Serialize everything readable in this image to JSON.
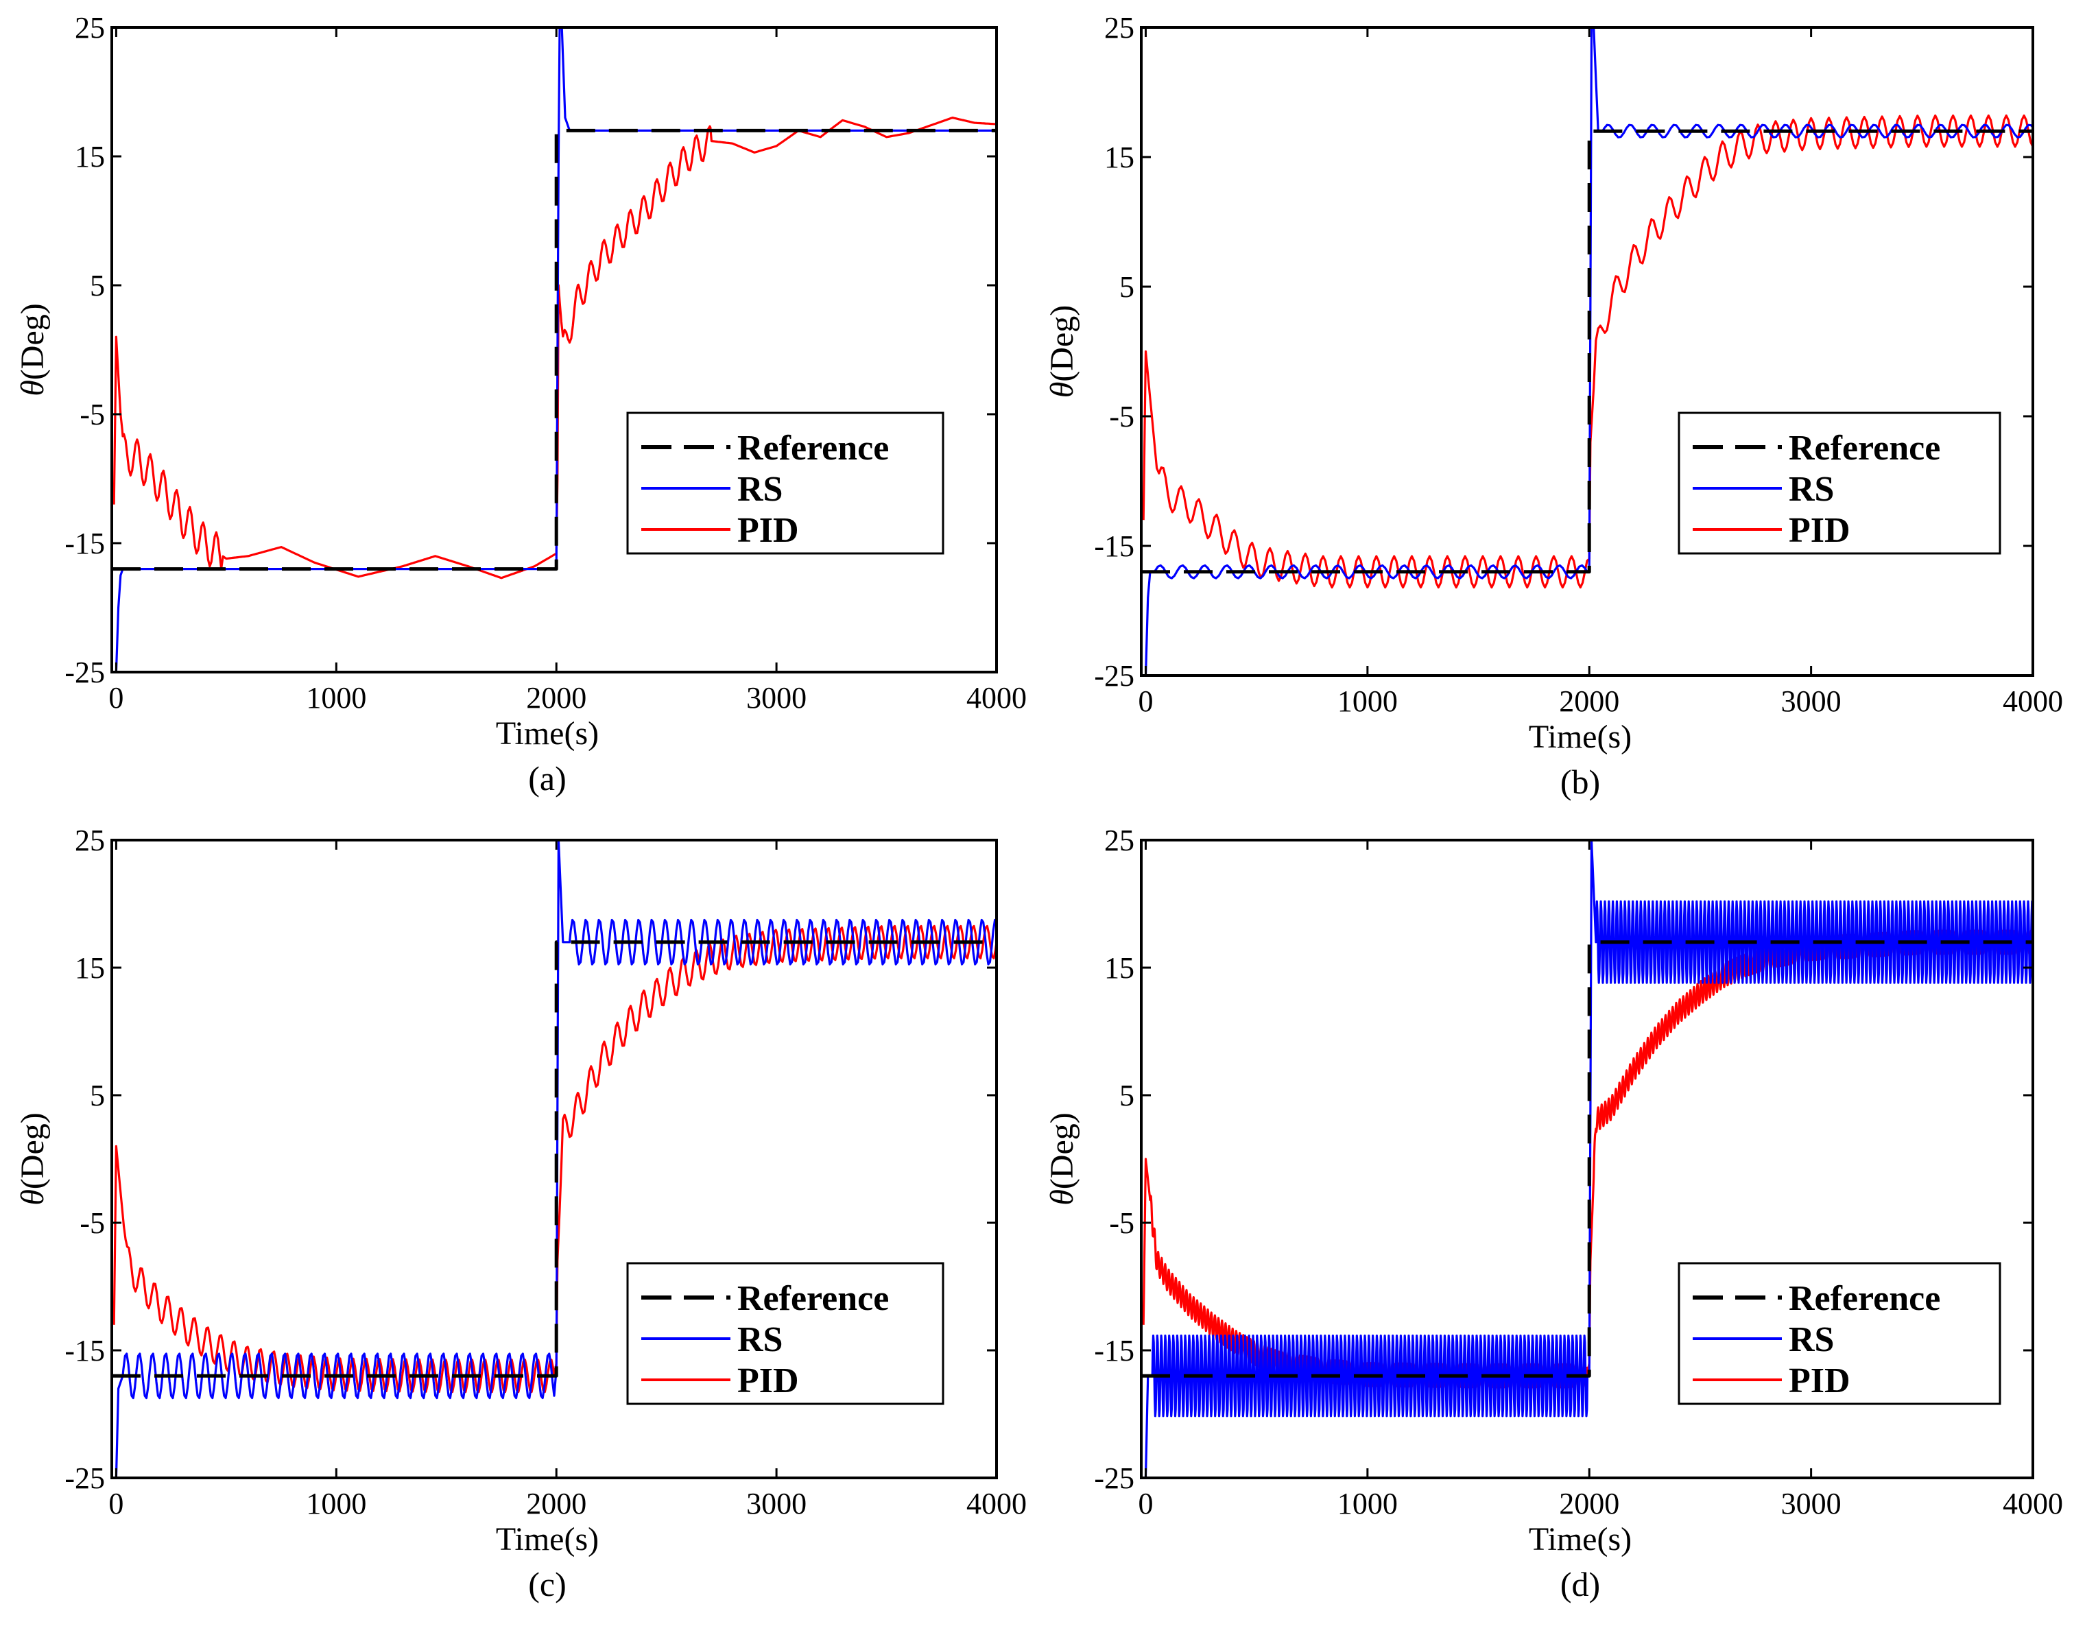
{
  "colors": {
    "reference": "#000000",
    "rs": "#0000ff",
    "pid": "#ff0000",
    "axes": "#000000",
    "background": "#ffffff"
  },
  "chart_data": [
    {
      "type": "line",
      "caption": "(a)",
      "xlabel": "Time(s)",
      "ylabel_symbol": "θ",
      "ylabel_unit": "(Deg)",
      "xlim": [
        -20,
        4000
      ],
      "ylim": [
        -25,
        25
      ],
      "xticks": [
        0,
        1000,
        2000,
        3000,
        4000
      ],
      "yticks": [
        25,
        15,
        5,
        -5,
        -15,
        -25
      ],
      "legend_position": "lower-right",
      "series": [
        {
          "name": "Reference",
          "style": "dashed",
          "color": "#000000",
          "x": [
            -20,
            2000,
            2000,
            4000
          ],
          "y": [
            -17,
            -17,
            17,
            17
          ]
        },
        {
          "name": "RS",
          "style": "solid",
          "color": "#0000ff",
          "x": [
            -20,
            0,
            10,
            20,
            30,
            60,
            100,
            200,
            2000,
            2010,
            2015,
            2025,
            2040,
            2060,
            2100,
            4000
          ],
          "y": [
            -25,
            -25,
            -20,
            -17.5,
            -17,
            -17,
            -17,
            -17,
            -17,
            15,
            25,
            25,
            18,
            17,
            17,
            17
          ]
        },
        {
          "name": "PID",
          "style": "solid",
          "color": "#ff0000",
          "x": [
            -10,
            0,
            30,
            100,
            200,
            300,
            400,
            500,
            600,
            750,
            900,
            1100,
            1300,
            1450,
            1600,
            1750,
            1900,
            2000,
            2005,
            2010,
            2030,
            2050,
            2100,
            2200,
            2300,
            2400,
            2500,
            2600,
            2700,
            2800,
            2900,
            3000,
            3100,
            3200,
            3300,
            3400,
            3500,
            3600,
            3700,
            3800,
            3900,
            4000
          ],
          "y": [
            -12,
            1,
            -8,
            -8.5,
            -10.5,
            -13,
            -15,
            -16.2,
            -16,
            -15.3,
            -16.5,
            -17.6,
            -16.8,
            -16,
            -16.8,
            -17.7,
            -16.8,
            -15.8,
            -10,
            5,
            0,
            1,
            4,
            7,
            9,
            10.8,
            13,
            15,
            16.2,
            16,
            15.3,
            15.8,
            17,
            16.5,
            17.8,
            17.3,
            16.5,
            16.8,
            17.4,
            18,
            17.6,
            17.5
          ],
          "oscillation": {
            "ranges": [
              [
                20,
                480,
                1.5
              ],
              [
                2020,
                2700,
                1.2
              ]
            ]
          }
        }
      ]
    },
    {
      "type": "line",
      "caption": "(b)",
      "xlabel": "Time(s)",
      "ylabel_symbol": "θ",
      "ylabel_unit": "(Deg)",
      "xlim": [
        -20,
        4000
      ],
      "ylim": [
        -25,
        25
      ],
      "xticks": [
        0,
        1000,
        2000,
        3000,
        4000
      ],
      "yticks": [
        25,
        15,
        5,
        -5,
        -15,
        -25
      ],
      "legend_position": "lower-right",
      "series": [
        {
          "name": "Reference",
          "style": "dashed",
          "color": "#000000",
          "x": [
            -20,
            2000,
            2000,
            4000
          ],
          "y": [
            -17,
            -17,
            17,
            17
          ]
        },
        {
          "name": "RS",
          "style": "solid",
          "color": "#0000ff",
          "x": [
            -20,
            0,
            10,
            20,
            40,
            100,
            1990,
            2000,
            2010,
            2020,
            2040,
            2060,
            4000
          ],
          "y": [
            -25,
            -25,
            -19,
            -17,
            -17,
            -17,
            -17,
            -17,
            25,
            25,
            17,
            17,
            17
          ],
          "oscillation": {
            "ranges": [
              [
                40,
                1990,
                0.5
              ],
              [
                2060,
                4000,
                0.5
              ]
            ],
            "period": 100
          }
        },
        {
          "name": "PID",
          "style": "solid",
          "color": "#ff0000",
          "x": [
            -10,
            0,
            50,
            100,
            200,
            300,
            400,
            500,
            600,
            800,
            1000,
            1500,
            1990,
            2000,
            2005,
            2030,
            2100,
            2200,
            2300,
            2400,
            2500,
            2600,
            2700,
            2800,
            3000,
            3500,
            4000
          ],
          "y": [
            -13,
            0,
            -9,
            -11,
            -12,
            -13.5,
            -15,
            -16.2,
            -16.5,
            -17,
            -17,
            -17,
            -17,
            -16,
            -7,
            0,
            4,
            7,
            9.5,
            11.5,
            13.5,
            15,
            16,
            16.5,
            16.8,
            17,
            17
          ],
          "oscillation": {
            "ranges": [
              [
                60,
                1990,
                1.2
              ],
              [
                2020,
                4000,
                1.2
              ]
            ],
            "period": 80
          }
        }
      ]
    },
    {
      "type": "line",
      "caption": "(c)",
      "xlabel": "Time(s)",
      "ylabel_symbol": "θ",
      "ylabel_unit": "(Deg)",
      "xlim": [
        -20,
        4000
      ],
      "ylim": [
        -25,
        25
      ],
      "xticks": [
        0,
        1000,
        2000,
        3000,
        4000
      ],
      "yticks": [
        25,
        15,
        5,
        -5,
        -15,
        -25
      ],
      "legend_position": "lower-right",
      "series": [
        {
          "name": "Reference",
          "style": "dashed",
          "color": "#000000",
          "x": [
            -20,
            2000,
            2000,
            4000
          ],
          "y": [
            -17,
            -17,
            17,
            17
          ]
        },
        {
          "name": "RS",
          "style": "solid",
          "color": "#0000ff",
          "x": [
            -20,
            0,
            10,
            30,
            60,
            1990,
            2000,
            2010,
            2030,
            2060,
            4000
          ],
          "y": [
            -25,
            -25,
            -18,
            -17,
            -17,
            -17,
            -17,
            25,
            17,
            17,
            17
          ],
          "oscillation": {
            "ranges": [
              [
                30,
                1990,
                1.8
              ],
              [
                2060,
                4000,
                1.8
              ]
            ],
            "period": 60
          }
        },
        {
          "name": "PID",
          "style": "solid",
          "color": "#ff0000",
          "x": [
            -10,
            0,
            50,
            100,
            200,
            300,
            400,
            500,
            600,
            800,
            1000,
            1500,
            1990,
            2000,
            2005,
            2030,
            2100,
            2200,
            2300,
            2400,
            2500,
            2600,
            2700,
            2800,
            3000,
            3500,
            4000
          ],
          "y": [
            -13,
            1,
            -8,
            -9.5,
            -11.5,
            -13,
            -14.3,
            -15.3,
            -16,
            -16.6,
            -16.9,
            -17,
            -17,
            -16,
            -8,
            2,
            4,
            7.5,
            10,
            12,
            13.5,
            14.8,
            15.6,
            16.2,
            16.7,
            17,
            17
          ],
          "oscillation": {
            "ranges": [
              [
                40,
                1990,
                1.3
              ],
              [
                2020,
                4000,
                1.3
              ]
            ],
            "period": 60
          }
        }
      ]
    },
    {
      "type": "line",
      "caption": "(d)",
      "xlabel": "Time(s)",
      "ylabel_symbol": "θ",
      "ylabel_unit": "(Deg)",
      "xlim": [
        -20,
        4000
      ],
      "ylim": [
        -25,
        25
      ],
      "xticks": [
        0,
        1000,
        2000,
        3000,
        4000
      ],
      "yticks": [
        25,
        15,
        5,
        -5,
        -15,
        -25
      ],
      "legend_position": "lower-right",
      "series": [
        {
          "name": "Reference",
          "style": "dashed",
          "color": "#000000",
          "x": [
            -20,
            2000,
            2000,
            4000
          ],
          "y": [
            -17,
            -17,
            17,
            17
          ]
        },
        {
          "name": "RS",
          "style": "solid",
          "color": "#0000ff",
          "x": [
            -20,
            0,
            10,
            30,
            1990,
            2000,
            2010,
            2030,
            4000
          ],
          "y": [
            -25,
            -25,
            -17,
            -17,
            -17,
            -17,
            25,
            17,
            17
          ],
          "oscillation": {
            "ranges": [
              [
                30,
                1990,
                3.2
              ],
              [
                2030,
                4000,
                3.2
              ]
            ],
            "period": 18
          }
        },
        {
          "name": "PID",
          "style": "solid",
          "color": "#ff0000",
          "x": [
            -10,
            0,
            50,
            100,
            200,
            300,
            400,
            500,
            600,
            800,
            1000,
            1500,
            1990,
            2000,
            2005,
            2030,
            2100,
            2200,
            2300,
            2400,
            2500,
            2600,
            2700,
            2800,
            3000,
            3500,
            4000
          ],
          "y": [
            -13,
            0,
            -8,
            -9.5,
            -11.5,
            -13,
            -14.3,
            -15.3,
            -16,
            -16.6,
            -16.9,
            -17,
            -17,
            -16,
            -8,
            3,
            4,
            7,
            9.5,
            11.5,
            13,
            14.3,
            15.2,
            15.8,
            16.5,
            17,
            17
          ],
          "oscillation": {
            "ranges": [
              [
                20,
                1990,
                0.9
              ],
              [
                2020,
                4000,
                0.9
              ]
            ],
            "period": 16
          }
        }
      ]
    }
  ]
}
